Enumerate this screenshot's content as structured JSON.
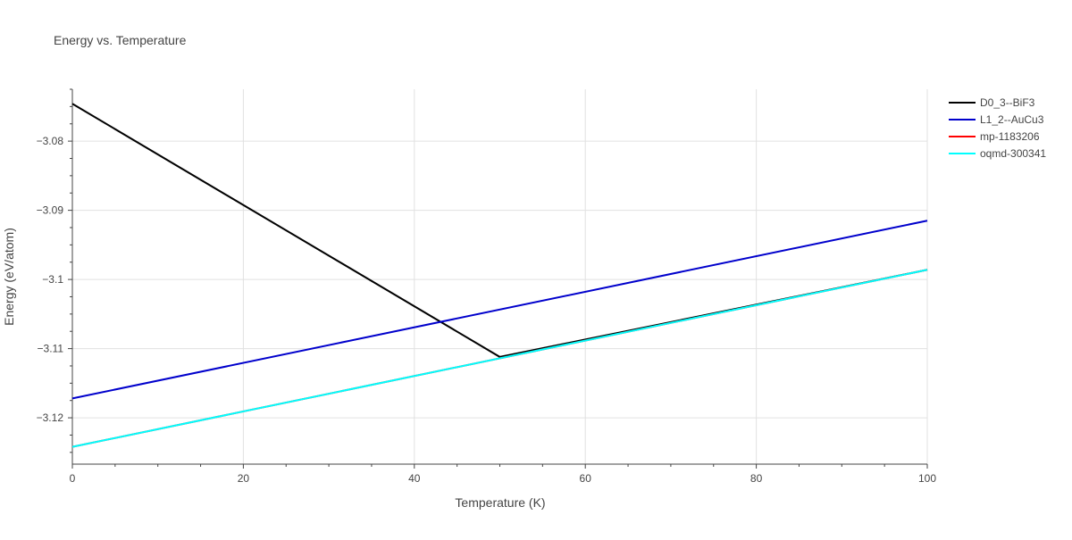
{
  "chart_data": {
    "type": "line",
    "title": "Energy vs. Temperature",
    "xlabel": "Temperature (K)",
    "ylabel": "Energy (eV/atom)",
    "xlim": [
      0,
      100
    ],
    "ylim": [
      -3.1267,
      -3.0725
    ],
    "x_ticks": [
      0,
      20,
      40,
      60,
      80,
      100
    ],
    "x_tick_labels": [
      "0",
      "20",
      "40",
      "60",
      "80",
      "100"
    ],
    "y_ticks": [
      -3.08,
      -3.09,
      -3.1,
      -3.11,
      -3.12
    ],
    "y_tick_labels": [
      "−3.08",
      "−3.09",
      "−3.1",
      "−3.11",
      "−3.12"
    ],
    "grid": true,
    "legend_position": "top-right",
    "series": [
      {
        "name": "D0_3--BiF3",
        "color": "#000000",
        "x": [
          0,
          50,
          100
        ],
        "y": [
          -3.0746,
          -3.1112,
          -3.0986
        ]
      },
      {
        "name": "L1_2--AuCu3",
        "color": "#0000cc",
        "x": [
          0,
          100
        ],
        "y": [
          -3.1172,
          -3.0915
        ]
      },
      {
        "name": "mp-1183206",
        "color": "#ff0000",
        "x": [
          0,
          100
        ],
        "y": [
          -3.1242,
          -3.0986
        ]
      },
      {
        "name": "oqmd-300341",
        "color": "#00ffff",
        "x": [
          0,
          100
        ],
        "y": [
          -3.1242,
          -3.0986
        ]
      }
    ]
  }
}
